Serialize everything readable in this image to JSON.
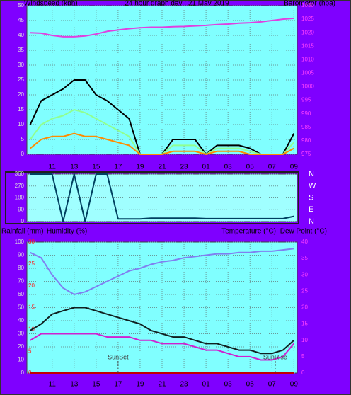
{
  "chart_data": [
    {
      "type": "line",
      "title": "24 hour graph day : 21 May 2019",
      "ylabel": "Windspeed (kph)",
      "y2label": "Barometer (hpa)",
      "x": [
        0,
        1,
        2,
        3,
        4,
        5,
        6,
        7,
        8,
        9,
        10,
        11,
        12,
        13,
        14,
        15,
        16,
        17,
        18,
        19,
        20,
        21,
        22,
        23,
        24
      ],
      "xlim": [
        -0.3,
        24.3
      ],
      "xticks": [
        {
          "value": 2,
          "label": "11"
        },
        {
          "value": 4,
          "label": "13"
        },
        {
          "value": 6,
          "label": "15"
        },
        {
          "value": 8,
          "label": "17"
        },
        {
          "value": 10,
          "label": "19"
        },
        {
          "value": 12,
          "label": "21"
        },
        {
          "value": 14,
          "label": "23"
        },
        {
          "value": 16,
          "label": "01"
        },
        {
          "value": 18,
          "label": "03"
        },
        {
          "value": 20,
          "label": "05"
        },
        {
          "value": 22,
          "label": "07"
        },
        {
          "value": 24,
          "label": "09"
        }
      ],
      "ylim": [
        0,
        50
      ],
      "yticks": [
        0,
        5,
        10,
        15,
        20,
        25,
        30,
        35,
        40,
        45,
        50
      ],
      "y2lim": [
        975,
        1030
      ],
      "y2ticks": [
        975,
        980,
        985,
        990,
        995,
        1000,
        1005,
        1010,
        1015,
        1020,
        1025,
        1030
      ],
      "grid": true,
      "series": [
        {
          "color": "#000000",
          "values": [
            10,
            18,
            20,
            22,
            25,
            25,
            20,
            18,
            15,
            12,
            0,
            0,
            0,
            5,
            5,
            5,
            0,
            3,
            3,
            3,
            2,
            0,
            0,
            0,
            7
          ]
        },
        {
          "color": "#90ff90",
          "values": [
            5,
            10,
            12,
            13,
            15,
            14,
            12,
            10,
            8,
            6,
            0,
            0,
            0,
            3,
            3,
            3,
            0,
            2,
            2,
            2,
            1,
            0,
            0,
            0,
            4
          ]
        },
        {
          "color": "#ff8c00",
          "values": [
            2,
            5,
            6,
            6,
            7,
            6,
            6,
            5,
            4,
            3,
            0,
            0,
            0,
            1,
            1,
            1,
            0,
            1,
            1,
            1,
            0,
            0,
            0,
            0,
            2
          ]
        },
        {
          "color": "#e040e0",
          "axis": "y2",
          "values": [
            1020,
            1019.8,
            1019,
            1018.5,
            1018.5,
            1018.8,
            1019.5,
            1020.5,
            1021,
            1021.5,
            1021.8,
            1022,
            1022,
            1022.2,
            1022.3,
            1022.5,
            1022.7,
            1023,
            1023.2,
            1023.5,
            1023.7,
            1024,
            1024.5,
            1025,
            1025.3
          ]
        }
      ]
    },
    {
      "type": "line",
      "x": [
        0,
        1,
        2,
        3,
        4,
        5,
        6,
        7,
        8,
        9,
        10,
        11,
        12,
        13,
        14,
        15,
        16,
        17,
        18,
        19,
        20,
        21,
        22,
        23,
        24
      ],
      "xlim": [
        -0.3,
        24.3
      ],
      "ylim": [
        0,
        360
      ],
      "yticks": [
        0,
        90,
        180,
        270,
        360
      ],
      "y2lim": [
        0,
        360
      ],
      "y2ticks": [
        {
          "value": 360,
          "label": "N"
        },
        {
          "value": 270,
          "label": "W"
        },
        {
          "value": 180,
          "label": "S"
        },
        {
          "value": 90,
          "label": "E"
        },
        {
          "value": 0,
          "label": "N"
        }
      ],
      "grid": true,
      "series": [
        {
          "color": "#004060",
          "values": [
            360,
            360,
            360,
            0,
            360,
            0,
            360,
            360,
            20,
            20,
            20,
            25,
            25,
            25,
            25,
            25,
            22,
            22,
            22,
            22,
            22,
            22,
            22,
            22,
            40
          ]
        }
      ]
    },
    {
      "type": "line",
      "x": [
        0,
        1,
        2,
        3,
        4,
        5,
        6,
        7,
        8,
        9,
        10,
        11,
        12,
        13,
        14,
        15,
        16,
        17,
        18,
        19,
        20,
        21,
        22,
        23,
        24
      ],
      "xlim": [
        -0.3,
        24.3
      ],
      "xticks": [
        {
          "value": 2,
          "label": "11"
        },
        {
          "value": 4,
          "label": "13"
        },
        {
          "value": 6,
          "label": "15"
        },
        {
          "value": 8,
          "label": "17"
        },
        {
          "value": 10,
          "label": "19"
        },
        {
          "value": 12,
          "label": "21"
        },
        {
          "value": 14,
          "label": "23"
        },
        {
          "value": 16,
          "label": "01"
        },
        {
          "value": 18,
          "label": "03"
        },
        {
          "value": 20,
          "label": "05"
        },
        {
          "value": 22,
          "label": "07"
        },
        {
          "value": 24,
          "label": "09"
        }
      ],
      "ylim": [
        0,
        100
      ],
      "yticks": [
        0,
        10,
        20,
        30,
        40,
        50,
        60,
        70,
        80,
        90,
        100
      ],
      "y2lim": [
        0,
        40
      ],
      "y2ticks": [
        0,
        5,
        10,
        15,
        20,
        25,
        30,
        35,
        40
      ],
      "y3lim": [
        0,
        30
      ],
      "y3ticks": [
        0,
        5,
        10,
        15,
        20,
        25,
        30
      ],
      "grid": true,
      "series": [
        {
          "name": "Rainfall (mm)",
          "color": "#c00000",
          "axis": "y3",
          "values": [
            0,
            0,
            0,
            0,
            0,
            0,
            0,
            0,
            0,
            0,
            0,
            0,
            0,
            0,
            0,
            0,
            0,
            0,
            0,
            0,
            0,
            0,
            0,
            0,
            0
          ]
        },
        {
          "name": "Humidity (%)",
          "color": "#8080f0",
          "values": [
            92,
            88,
            75,
            65,
            60,
            62,
            66,
            70,
            74,
            78,
            80,
            83,
            85,
            86,
            88,
            89,
            90,
            91,
            91,
            92,
            92,
            93,
            93,
            94,
            95
          ]
        },
        {
          "name": "Temperature (°C)",
          "color": "#102020",
          "axis": "y2",
          "values": [
            13,
            15,
            18,
            19,
            20,
            20,
            19,
            18,
            17,
            16,
            15,
            13,
            12,
            11,
            11,
            10,
            9,
            9,
            8,
            7,
            7,
            6,
            6,
            7,
            10
          ]
        },
        {
          "name": "Dew Point (°C)",
          "color": "#d020d0",
          "axis": "y2",
          "values": [
            10,
            12,
            12,
            12,
            12,
            12,
            12,
            11,
            11,
            11,
            10,
            10,
            9,
            9,
            9,
            8,
            7,
            7,
            6,
            5,
            5,
            4,
            4,
            5,
            9
          ]
        }
      ],
      "annotations": [
        {
          "text": "SunSet",
          "x": 8
        },
        {
          "text": "SunRise",
          "x": 22.3
        }
      ]
    }
  ]
}
